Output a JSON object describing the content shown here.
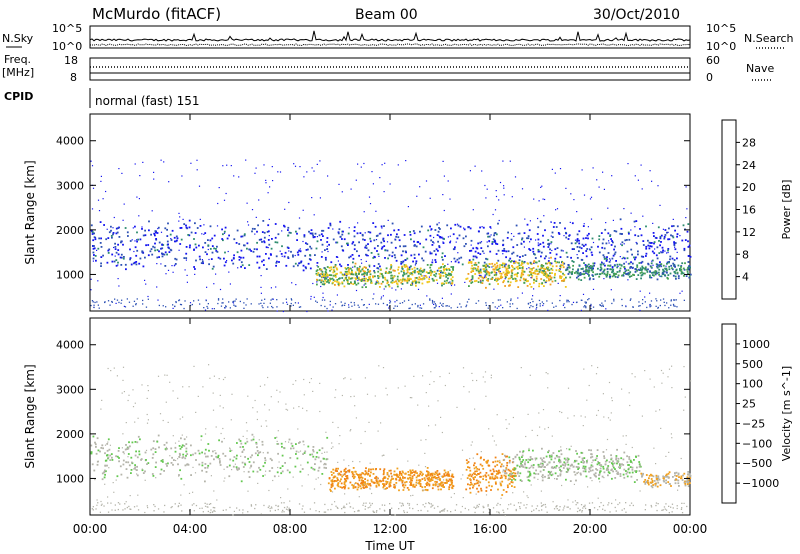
{
  "header": {
    "station": "McMurdo (fitACF)",
    "beam": "Beam 00",
    "date": "30/Oct/2010"
  },
  "summary": {
    "left_label_top": "N.Sky",
    "left_label_freq_1": "Freq.",
    "left_label_freq_2": "[MHz]",
    "left_label_cpid": "CPID",
    "right_label_top": "N.Search",
    "right_label_mid": "Nave",
    "left_ticks_top": [
      "10^5",
      "10^0"
    ],
    "right_ticks_top": [
      "10^5",
      "10^0"
    ],
    "freq_ticks": [
      "18",
      "8"
    ],
    "nave_ticks": [
      "60",
      "0"
    ],
    "cpid_text": "normal (fast) 151"
  },
  "chart_data": [
    {
      "type": "heatmap",
      "name": "power",
      "ylabel": "Slant Range [km]",
      "xlabel": "",
      "y_ticks": [
        1000,
        2000,
        3000,
        4000
      ],
      "ylim": [
        180,
        4600
      ],
      "colorbar_label": "Power [dB]",
      "colorbar_ticks": [
        4,
        8,
        12,
        16,
        20,
        24,
        28
      ],
      "colorbar_colors": [
        "#1414f0",
        "#2d51b4",
        "#2d8c6e",
        "#46a050",
        "#f0c81e",
        "#f0a01e",
        "#f0641e",
        "#e60f0f"
      ],
      "colorbar_range": [
        0,
        32
      ],
      "bands": [
        {
          "start_h": 0.0,
          "end_h": 24.0,
          "r_center": 1650,
          "r_width": 900,
          "value": 4,
          "density": 0.35
        },
        {
          "start_h": 9.0,
          "end_h": 14.5,
          "r_center": 1000,
          "r_width": 400,
          "value": 16,
          "density": 0.7
        },
        {
          "start_h": 15.0,
          "end_h": 19.0,
          "r_center": 1050,
          "r_width": 500,
          "value": 18,
          "density": 0.75
        },
        {
          "start_h": 19.0,
          "end_h": 24.0,
          "r_center": 1100,
          "r_width": 300,
          "value": 10,
          "density": 0.5
        }
      ]
    },
    {
      "type": "heatmap",
      "name": "velocity",
      "ylabel": "Slant Range [km]",
      "xlabel": "Time UT",
      "y_ticks": [
        1000,
        2000,
        3000,
        4000
      ],
      "ylim": [
        180,
        4600
      ],
      "colorbar_label": "Velocity [m s^-1]",
      "colorbar_ticks": [
        1000,
        500,
        100,
        25,
        -25,
        -100,
        -500,
        -1000
      ],
      "colorbar_colors": [
        "#2d4bb4",
        "#2d7896",
        "#3c9664",
        "#64c850",
        "#b4b4aa",
        "#f0a01e",
        "#f08214",
        "#f05a14",
        "#e61414"
      ],
      "colorbar_range": [
        -1250,
        1250
      ],
      "x_ticks": [
        "00:00",
        "04:00",
        "08:00",
        "12:00",
        "16:00",
        "20:00",
        "00:00"
      ],
      "bands": [
        {
          "start_h": 0.0,
          "end_h": 9.5,
          "r_center": 1500,
          "r_width": 800,
          "value": 100,
          "density": 0.3
        },
        {
          "start_h": 9.5,
          "end_h": 14.5,
          "r_center": 1000,
          "r_width": 400,
          "value": -400,
          "density": 0.75
        },
        {
          "start_h": 15.0,
          "end_h": 17.0,
          "r_center": 1100,
          "r_width": 700,
          "value": -400,
          "density": 0.7
        },
        {
          "start_h": 16.5,
          "end_h": 22.0,
          "r_center": 1300,
          "r_width": 600,
          "value": 100,
          "density": 0.55
        },
        {
          "start_h": 22.0,
          "end_h": 24.0,
          "r_center": 1000,
          "r_width": 300,
          "value": -100,
          "density": 0.5
        }
      ]
    }
  ]
}
